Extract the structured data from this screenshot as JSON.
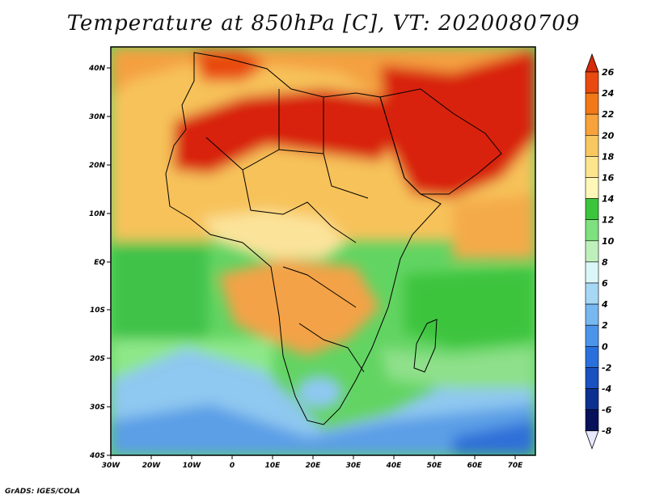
{
  "title": "Temperature at 850hPa [C], VT: 2020080709",
  "footer": "GrADS: IGES/COLA",
  "map": {
    "region": "Africa",
    "lat_labels": [
      "40N",
      "30N",
      "20N",
      "10N",
      "EQ",
      "10S",
      "20S",
      "30S",
      "40S"
    ],
    "lon_labels": [
      "30W",
      "20W",
      "10W",
      "0",
      "10E",
      "20E",
      "30E",
      "40E",
      "50E",
      "60E",
      "70E"
    ]
  },
  "colorbar": {
    "labels": [
      "26",
      "24",
      "22",
      "20",
      "18",
      "16",
      "14",
      "12",
      "10",
      "8",
      "6",
      "4",
      "2",
      "0",
      "-2",
      "-4",
      "-6",
      "-8"
    ],
    "colors": [
      "#d42a0a",
      "#e84a10",
      "#f27818",
      "#f7a23a",
      "#f8c860",
      "#fce58c",
      "#fff7b8",
      "#3cc43c",
      "#7ee07e",
      "#bff0bc",
      "#dbf6f6",
      "#a6d8f6",
      "#78b8f0",
      "#4c94ea",
      "#2a70dc",
      "#1a50c0",
      "#0c3090",
      "#08125a"
    ]
  }
}
